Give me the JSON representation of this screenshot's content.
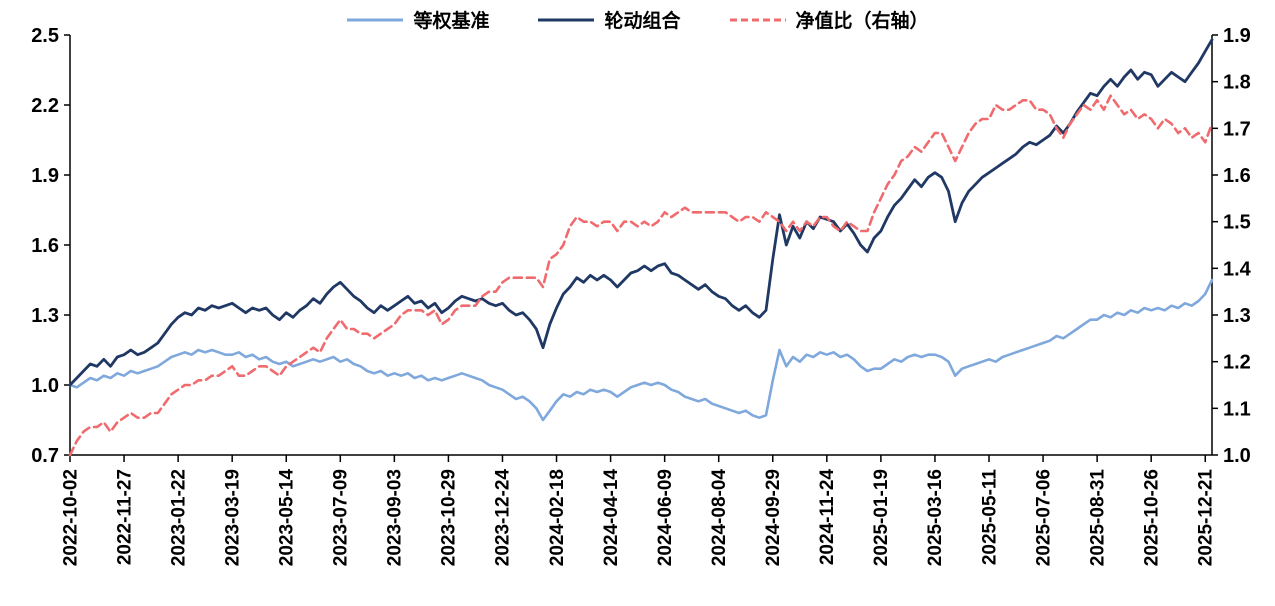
{
  "chart_data": {
    "type": "line",
    "title": "",
    "legend_position": "top-center",
    "grid": false,
    "background": "#ffffff",
    "x_tick_every": 8,
    "x_tick_labels": [
      "2022-10-02",
      "2022-11-27",
      "2023-01-22",
      "2023-03-19",
      "2023-05-14",
      "2023-07-09",
      "2023-09-03",
      "2023-10-29",
      "2023-12-24",
      "2024-02-18",
      "2024-04-14",
      "2024-06-09",
      "2024-08-04",
      "2024-09-29",
      "2024-11-24",
      "2025-01-19",
      "2025-03-16",
      "2025-05-11",
      "2025-07-06",
      "2025-08-31",
      "2025-10-26",
      "2025-12-21"
    ],
    "left_axis": {
      "min": 0.7,
      "max": 2.5,
      "tick_step": 0.3,
      "tick_labels": [
        "0.7",
        "1.0",
        "1.3",
        "1.6",
        "1.9",
        "2.2",
        "2.5"
      ]
    },
    "right_axis": {
      "min": 1.0,
      "max": 1.9,
      "tick_step": 0.1,
      "tick_labels": [
        "1.0",
        "1.1",
        "1.2",
        "1.3",
        "1.4",
        "1.5",
        "1.6",
        "1.7",
        "1.8",
        "1.9"
      ]
    },
    "series": [
      {
        "id": "equal-weight-benchmark",
        "name": "等权基准",
        "axis": "left",
        "line_style": "solid",
        "color": "#7fa8dc",
        "line_width": 2.6,
        "values": [
          1.0,
          0.99,
          1.01,
          1.03,
          1.02,
          1.04,
          1.03,
          1.05,
          1.04,
          1.06,
          1.05,
          1.06,
          1.07,
          1.08,
          1.1,
          1.12,
          1.13,
          1.14,
          1.13,
          1.15,
          1.14,
          1.15,
          1.14,
          1.13,
          1.13,
          1.14,
          1.12,
          1.13,
          1.11,
          1.12,
          1.1,
          1.09,
          1.1,
          1.08,
          1.09,
          1.1,
          1.11,
          1.1,
          1.11,
          1.12,
          1.1,
          1.11,
          1.09,
          1.08,
          1.06,
          1.05,
          1.06,
          1.04,
          1.05,
          1.04,
          1.05,
          1.03,
          1.04,
          1.02,
          1.03,
          1.02,
          1.03,
          1.04,
          1.05,
          1.04,
          1.03,
          1.02,
          1.0,
          0.99,
          0.98,
          0.96,
          0.94,
          0.95,
          0.93,
          0.9,
          0.85,
          0.89,
          0.93,
          0.96,
          0.95,
          0.97,
          0.96,
          0.98,
          0.97,
          0.98,
          0.97,
          0.95,
          0.97,
          0.99,
          1.0,
          1.01,
          1.0,
          1.01,
          1.0,
          0.98,
          0.97,
          0.95,
          0.94,
          0.93,
          0.94,
          0.92,
          0.91,
          0.9,
          0.89,
          0.88,
          0.89,
          0.87,
          0.86,
          0.87,
          1.02,
          1.15,
          1.08,
          1.12,
          1.1,
          1.13,
          1.12,
          1.14,
          1.13,
          1.14,
          1.12,
          1.13,
          1.11,
          1.08,
          1.06,
          1.07,
          1.07,
          1.09,
          1.11,
          1.1,
          1.12,
          1.13,
          1.12,
          1.13,
          1.13,
          1.12,
          1.1,
          1.04,
          1.07,
          1.08,
          1.09,
          1.1,
          1.11,
          1.1,
          1.12,
          1.13,
          1.14,
          1.15,
          1.16,
          1.17,
          1.18,
          1.19,
          1.21,
          1.2,
          1.22,
          1.24,
          1.26,
          1.28,
          1.28,
          1.3,
          1.29,
          1.31,
          1.3,
          1.32,
          1.31,
          1.33,
          1.32,
          1.33,
          1.32,
          1.34,
          1.33,
          1.35,
          1.34,
          1.36,
          1.39,
          1.45
        ]
      },
      {
        "id": "rotation-portfolio",
        "name": "轮动组合",
        "axis": "left",
        "line_style": "solid",
        "color": "#1f3864",
        "line_width": 2.8,
        "values": [
          1.0,
          1.03,
          1.06,
          1.09,
          1.08,
          1.11,
          1.08,
          1.12,
          1.13,
          1.15,
          1.13,
          1.14,
          1.16,
          1.18,
          1.22,
          1.26,
          1.29,
          1.31,
          1.3,
          1.33,
          1.32,
          1.34,
          1.33,
          1.34,
          1.35,
          1.33,
          1.31,
          1.33,
          1.32,
          1.33,
          1.3,
          1.28,
          1.31,
          1.29,
          1.32,
          1.34,
          1.37,
          1.35,
          1.39,
          1.42,
          1.44,
          1.41,
          1.38,
          1.36,
          1.33,
          1.31,
          1.34,
          1.32,
          1.34,
          1.36,
          1.38,
          1.35,
          1.36,
          1.33,
          1.35,
          1.31,
          1.33,
          1.36,
          1.38,
          1.37,
          1.36,
          1.37,
          1.35,
          1.34,
          1.35,
          1.32,
          1.3,
          1.31,
          1.28,
          1.24,
          1.16,
          1.26,
          1.33,
          1.39,
          1.42,
          1.46,
          1.44,
          1.47,
          1.45,
          1.47,
          1.45,
          1.42,
          1.45,
          1.48,
          1.49,
          1.51,
          1.49,
          1.51,
          1.52,
          1.48,
          1.47,
          1.45,
          1.43,
          1.41,
          1.43,
          1.4,
          1.38,
          1.37,
          1.34,
          1.32,
          1.34,
          1.31,
          1.29,
          1.32,
          1.54,
          1.73,
          1.6,
          1.68,
          1.63,
          1.7,
          1.67,
          1.72,
          1.71,
          1.7,
          1.66,
          1.69,
          1.65,
          1.6,
          1.57,
          1.63,
          1.66,
          1.72,
          1.77,
          1.8,
          1.84,
          1.88,
          1.85,
          1.89,
          1.91,
          1.89,
          1.83,
          1.7,
          1.78,
          1.83,
          1.86,
          1.89,
          1.91,
          1.93,
          1.95,
          1.97,
          1.99,
          2.02,
          2.04,
          2.03,
          2.05,
          2.07,
          2.11,
          2.08,
          2.12,
          2.17,
          2.21,
          2.25,
          2.24,
          2.28,
          2.31,
          2.28,
          2.32,
          2.35,
          2.31,
          2.34,
          2.33,
          2.28,
          2.31,
          2.34,
          2.32,
          2.3,
          2.34,
          2.38,
          2.43,
          2.48
        ]
      },
      {
        "id": "nav-ratio-right-axis",
        "name": "净值比（右轴）",
        "axis": "right",
        "line_style": "dashed",
        "color": "#ef6b6e",
        "line_width": 2.6,
        "values": [
          1.0,
          1.03,
          1.05,
          1.06,
          1.06,
          1.07,
          1.05,
          1.07,
          1.08,
          1.09,
          1.08,
          1.08,
          1.09,
          1.09,
          1.11,
          1.13,
          1.14,
          1.15,
          1.15,
          1.16,
          1.16,
          1.17,
          1.17,
          1.18,
          1.19,
          1.17,
          1.17,
          1.18,
          1.19,
          1.19,
          1.18,
          1.17,
          1.19,
          1.2,
          1.21,
          1.22,
          1.23,
          1.22,
          1.25,
          1.27,
          1.29,
          1.27,
          1.27,
          1.26,
          1.26,
          1.25,
          1.26,
          1.27,
          1.28,
          1.3,
          1.31,
          1.31,
          1.31,
          1.3,
          1.31,
          1.28,
          1.29,
          1.31,
          1.32,
          1.32,
          1.32,
          1.34,
          1.35,
          1.35,
          1.37,
          1.38,
          1.38,
          1.38,
          1.38,
          1.38,
          1.36,
          1.42,
          1.43,
          1.45,
          1.49,
          1.51,
          1.5,
          1.5,
          1.49,
          1.5,
          1.5,
          1.48,
          1.5,
          1.5,
          1.49,
          1.5,
          1.49,
          1.5,
          1.52,
          1.51,
          1.52,
          1.53,
          1.52,
          1.52,
          1.52,
          1.52,
          1.52,
          1.52,
          1.51,
          1.5,
          1.51,
          1.51,
          1.5,
          1.52,
          1.51,
          1.5,
          1.48,
          1.5,
          1.48,
          1.5,
          1.49,
          1.51,
          1.51,
          1.49,
          1.48,
          1.5,
          1.49,
          1.48,
          1.48,
          1.52,
          1.55,
          1.58,
          1.6,
          1.63,
          1.64,
          1.66,
          1.65,
          1.67,
          1.69,
          1.69,
          1.66,
          1.63,
          1.66,
          1.69,
          1.71,
          1.72,
          1.72,
          1.75,
          1.74,
          1.74,
          1.75,
          1.76,
          1.76,
          1.74,
          1.74,
          1.73,
          1.7,
          1.68,
          1.71,
          1.73,
          1.75,
          1.74,
          1.76,
          1.74,
          1.77,
          1.75,
          1.73,
          1.74,
          1.72,
          1.73,
          1.72,
          1.7,
          1.72,
          1.71,
          1.69,
          1.7,
          1.68,
          1.69,
          1.67,
          1.71
        ]
      }
    ]
  }
}
